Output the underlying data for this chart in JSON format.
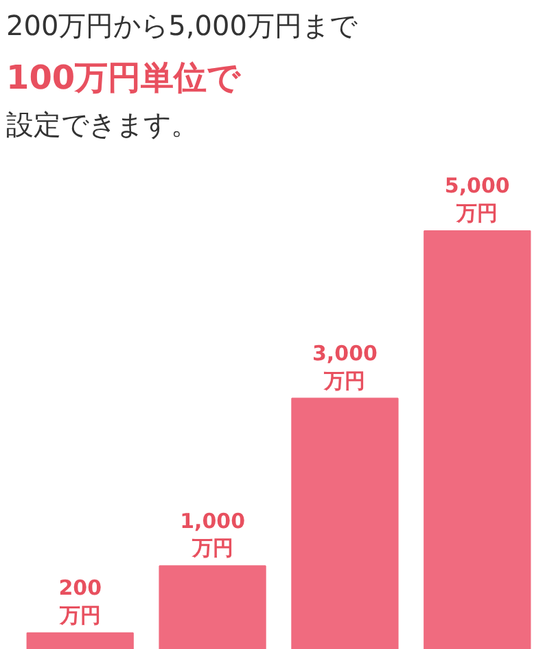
{
  "chart_data": {
    "type": "bar",
    "title": "200万円から5,000万円まで",
    "subtitle": "100万円単位で設定できます。",
    "categories": [
      null,
      null,
      null,
      null
    ],
    "values": [
      200,
      1000,
      3000,
      5000
    ],
    "color": "#f06b7f",
    "value_labels": [
      "200\n万円",
      "1,000\n万円",
      "3,000\n万円",
      "5,000\n万円"
    ]
  }
}
